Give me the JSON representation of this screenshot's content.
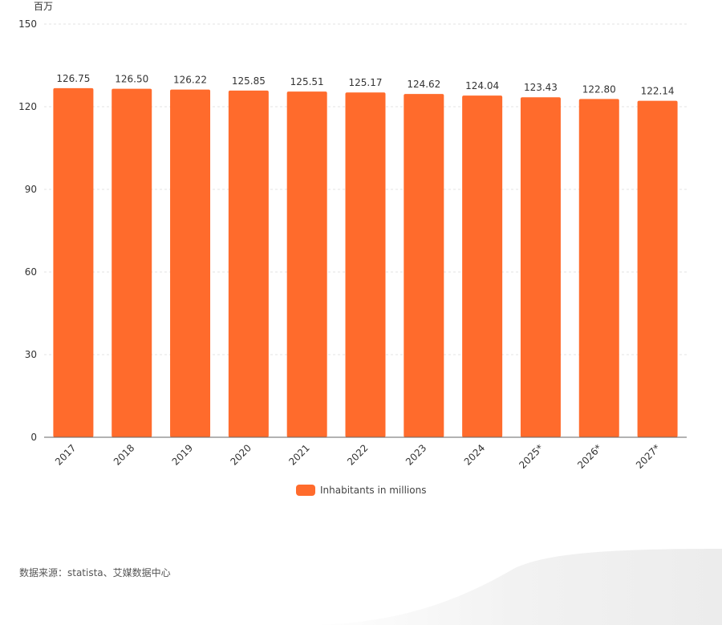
{
  "colors": {
    "bar": "#ff6b2c",
    "grid": "#e3e3e3",
    "axis": "#666666"
  },
  "unit_label": "百万",
  "legend": {
    "label": "Inhabitants in millions"
  },
  "source": "数据来源：statista、艾媒数据中心",
  "chart_data": {
    "type": "bar",
    "categories": [
      "2017",
      "2018",
      "2019",
      "2020",
      "2021",
      "2022",
      "2023",
      "2024",
      "2025*",
      "2026*",
      "2027*"
    ],
    "series": [
      {
        "name": "Inhabitants in millions",
        "values": [
          126.75,
          126.5,
          126.22,
          125.85,
          125.51,
          125.17,
          124.62,
          124.04,
          123.43,
          122.8,
          122.14
        ]
      }
    ],
    "value_labels": [
      "126.75",
      "126.50",
      "126.22",
      "125.85",
      "125.51",
      "125.17",
      "124.62",
      "124.04",
      "123.43",
      "122.80",
      "122.14"
    ],
    "yticks": [
      0,
      30,
      60,
      90,
      120,
      150
    ],
    "ylim": [
      0,
      150
    ],
    "grid": true,
    "legend_position": "bottom"
  }
}
